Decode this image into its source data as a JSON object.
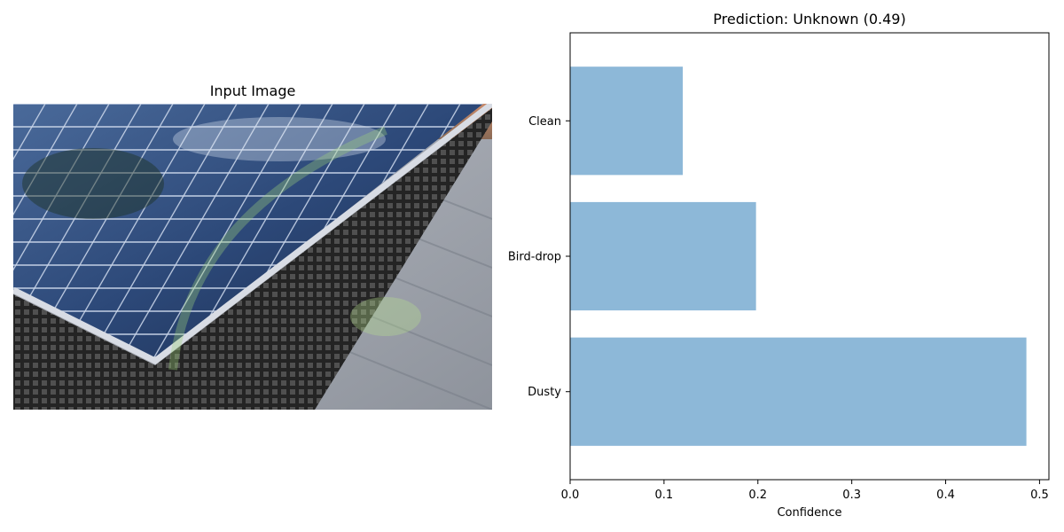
{
  "left_panel": {
    "title": "Input Image"
  },
  "chart_data": {
    "type": "bar",
    "orientation": "horizontal",
    "title": "Prediction: Unknown (0.49)",
    "categories": [
      "Clean",
      "Bird-drop",
      "Dusty"
    ],
    "values": [
      0.12,
      0.198,
      0.486
    ],
    "xlabel": "Confidence",
    "ylabel": "",
    "xlim": [
      0,
      0.51
    ],
    "xticks": [
      0.0,
      0.1,
      0.2,
      0.3,
      0.4,
      0.5
    ],
    "xtick_labels": [
      "0.0",
      "0.1",
      "0.2",
      "0.3",
      "0.4",
      "0.5"
    ],
    "bar_color": "#8db8d8",
    "grid": false
  }
}
